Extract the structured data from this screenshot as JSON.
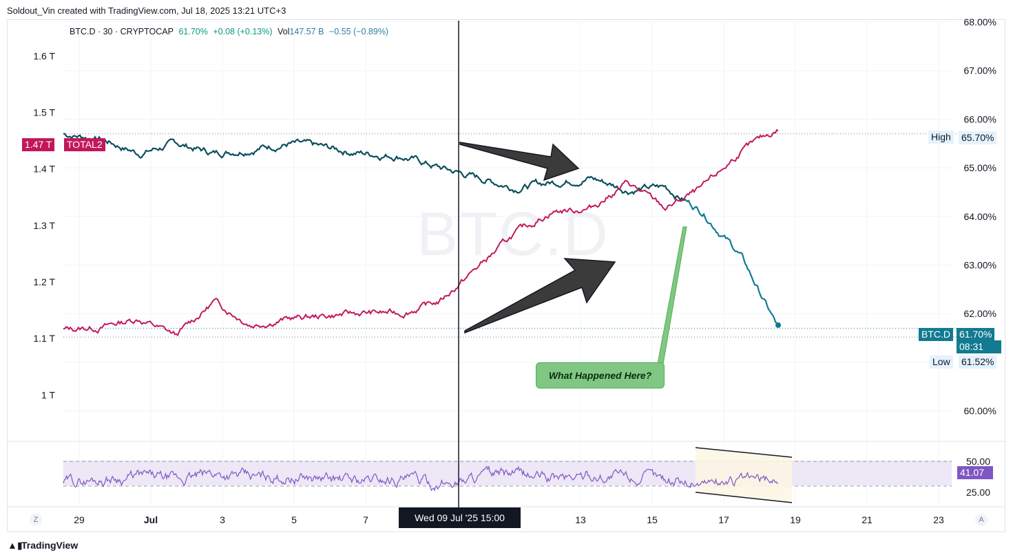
{
  "header": {
    "credit": "Soldout_Vin created with TradingView.com, Jul 18, 2025 13:21 UTC+3"
  },
  "legend": {
    "symbol": "BTC.D · 30 · CRYPTOCAP",
    "price": "61.70%",
    "change": "+0.08 (+0.13%)",
    "vol_label": "Vol",
    "vol_value": "147.57 B",
    "vol_change": "−0.55 (−0.89%)"
  },
  "watermark": "BTC.D",
  "left_axis": {
    "ticks": [
      "1.6 T",
      "1.5 T",
      "1.4 T",
      "1.3 T",
      "1.2 T",
      "1.1 T",
      "1 T"
    ]
  },
  "right_axis": {
    "ticks": [
      "68.00%",
      "67.00%",
      "66.00%",
      "65.00%",
      "64.00%",
      "63.00%",
      "62.00%",
      "61.00%",
      "60.00%"
    ]
  },
  "rsi_axis": {
    "ticks": [
      "50.00",
      "25.00"
    ],
    "current": "41.07"
  },
  "x_axis": {
    "ticks": [
      "29",
      "Jul",
      "3",
      "5",
      "7",
      "13",
      "15",
      "17",
      "19",
      "21",
      "23"
    ]
  },
  "crosshair_label": "Wed 09 Jul '25   15:00",
  "badges": {
    "total2_value": "1.47 T",
    "total2_name": "TOTAL2",
    "high_label": "High",
    "high_value": "65.70%",
    "btcd_name": "BTC.D",
    "btcd_value": "61.70%",
    "btcd_timer": "08:31",
    "low_label": "Low",
    "low_value": "61.52%"
  },
  "annotation": "What Happened Here?",
  "footer": {
    "logo": "TradingView"
  },
  "corner_buttons": {
    "left": "Z",
    "right": "A"
  },
  "colors": {
    "btcd": "#0b4f5c",
    "btcd_recent": "#127a91",
    "total2": "#c2185b",
    "rsi": "#7e57c2",
    "rsi_band": "#ede7f6"
  },
  "chart_data": [
    {
      "type": "line",
      "x": [
        "Jun 28",
        "Jun 29",
        "Jul 1",
        "Jul 2",
        "Jul 3",
        "Jul 4",
        "Jul 5",
        "Jul 6",
        "Jul 7",
        "Jul 8",
        "Jul 9",
        "Jul 10",
        "Jul 11",
        "Jul 12",
        "Jul 13",
        "Jul 14",
        "Jul 15",
        "Jul 16",
        "Jul 17",
        "Jul 18"
      ],
      "series": [
        {
          "name": "BTC.D",
          "axis": "right",
          "values": [
            65.7,
            65.6,
            65.3,
            65.5,
            65.3,
            65.4,
            65.5,
            65.4,
            65.3,
            65.25,
            65.0,
            64.8,
            64.6,
            64.7,
            64.8,
            64.55,
            64.6,
            64.1,
            63.2,
            61.7
          ]
        },
        {
          "name": "TOTAL2",
          "axis": "left",
          "values": [
            1.115,
            1.12,
            1.135,
            1.105,
            1.165,
            1.125,
            1.135,
            1.14,
            1.145,
            1.145,
            1.165,
            1.225,
            1.285,
            1.325,
            1.33,
            1.375,
            1.33,
            1.365,
            1.43,
            1.47
          ]
        },
        {
          "name": "RSI",
          "axis": "rsi",
          "values": [
            35,
            40,
            45,
            38,
            50,
            42,
            44,
            40,
            38,
            42,
            30,
            45,
            48,
            42,
            46,
            44,
            40,
            36,
            38,
            41.07
          ]
        }
      ],
      "y_left_range": [
        0.92,
        1.66
      ],
      "y_right_range": [
        59.4,
        68.0
      ],
      "rsi_range": [
        0,
        100
      ],
      "high": 65.7,
      "low": 61.52,
      "current": 61.7
    }
  ]
}
